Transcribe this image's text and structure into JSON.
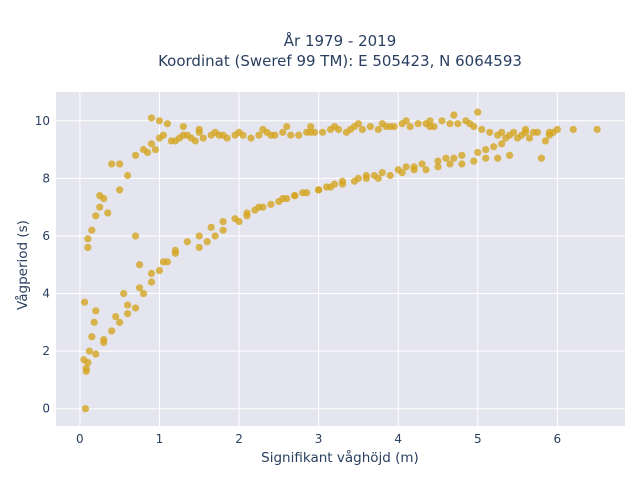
{
  "chart_data": {
    "type": "scatter",
    "title_line1": "År 1979 - 2019",
    "title_line2": "Koordinat (Sweref 99 TM): E 505423, N 6064593",
    "xlabel": "Signifikant våghöjd (m)",
    "ylabel": "Vågperiod (s)",
    "xlim": [
      -0.3,
      6.85
    ],
    "ylim": [
      -0.6,
      11.0
    ],
    "xticks": [
      0,
      1,
      2,
      3,
      4,
      5,
      6
    ],
    "yticks": [
      0,
      2,
      4,
      6,
      8,
      10
    ],
    "xtick_labels": [
      "0",
      "1",
      "2",
      "3",
      "4",
      "5",
      "6"
    ],
    "ytick_labels": [
      "0",
      "2",
      "4",
      "6",
      "8",
      "10"
    ],
    "grid": true,
    "background_color": "#e5e5ef",
    "grid_color": "#ffffff",
    "marker_color": "#d4a522",
    "series": [
      {
        "x": [
          0.08,
          0.1,
          0.12,
          0.15,
          0.18,
          0.2,
          0.1,
          0.15,
          0.2,
          0.25,
          0.3,
          0.2,
          0.3,
          0.4,
          0.5,
          0.6,
          0.7,
          0.6,
          0.5,
          0.7,
          0.8,
          0.9,
          1.0,
          0.8,
          0.9,
          1.0,
          1.1,
          1.2,
          1.2,
          1.3,
          1.4,
          1.5,
          1.5,
          1.6,
          1.7,
          1.8,
          1.8,
          2.0,
          2.1,
          2.2,
          2.3,
          2.4,
          2.5,
          2.6,
          2.7,
          2.8,
          2.9,
          3.0,
          3.1,
          3.2,
          3.3,
          3.4,
          3.5,
          3.6,
          3.7,
          3.8,
          3.9,
          4.0,
          4.1,
          4.2,
          4.3,
          4.4,
          4.5,
          4.6,
          4.7,
          4.8,
          4.9,
          5.0,
          5.1,
          5.2,
          5.3,
          5.4,
          5.5,
          5.6,
          5.7,
          5.8,
          5.9,
          6.0,
          6.2,
          6.5,
          0.05,
          0.08,
          0.06,
          0.1,
          0.4,
          0.35,
          0.5,
          0.55,
          0.3,
          0.25,
          0.7,
          0.75,
          0.85,
          0.95,
          1.05,
          1.15,
          1.25,
          1.35,
          1.45,
          1.55,
          1.65,
          1.75,
          1.85,
          1.95,
          2.05,
          2.15,
          2.25,
          2.35,
          2.45,
          2.55,
          2.65,
          2.75,
          2.85,
          2.95,
          3.05,
          3.15,
          3.25,
          3.35,
          3.45,
          3.55,
          3.65,
          3.75,
          3.85,
          3.95,
          4.05,
          4.15,
          4.25,
          4.35,
          4.45,
          4.55,
          4.65,
          4.75,
          4.85,
          4.95,
          5.05,
          5.15,
          5.25,
          5.35,
          5.45,
          5.55,
          5.65,
          5.75,
          5.85,
          5.95,
          0.45,
          0.6,
          0.75,
          0.9,
          1.05,
          1.2,
          1.35,
          1.5,
          1.65,
          1.8,
          1.95,
          2.1,
          2.25,
          2.4,
          2.55,
          2.7,
          2.85,
          3.0,
          3.15,
          3.3,
          3.45,
          3.6,
          3.75,
          3.9,
          4.05,
          4.2,
          4.35,
          4.5,
          4.65,
          4.8,
          4.95,
          5.1,
          5.25,
          5.4,
          0.9,
          1.0,
          1.1,
          1.3,
          1.5,
          1.7,
          2.0,
          2.3,
          2.6,
          2.9,
          3.2,
          3.5,
          3.8,
          4.1,
          4.4,
          4.7,
          5.0,
          5.3,
          5.6,
          5.9,
          0.07
        ],
        "y": [
          1.3,
          1.6,
          2.0,
          2.5,
          3.0,
          3.4,
          5.6,
          6.2,
          6.7,
          7.0,
          7.3,
          1.9,
          2.4,
          2.7,
          3.0,
          3.3,
          3.5,
          8.1,
          8.5,
          8.8,
          9.0,
          9.2,
          9.4,
          4.0,
          4.4,
          4.8,
          5.1,
          5.4,
          9.3,
          9.5,
          9.4,
          9.6,
          5.6,
          5.8,
          6.0,
          6.2,
          9.5,
          6.5,
          6.7,
          6.9,
          7.0,
          9.5,
          7.2,
          7.3,
          7.4,
          7.5,
          9.6,
          7.6,
          7.7,
          7.8,
          7.9,
          9.7,
          8.0,
          8.1,
          8.1,
          8.2,
          9.8,
          8.3,
          8.4,
          8.4,
          8.5,
          9.8,
          8.6,
          8.7,
          8.7,
          8.8,
          9.9,
          8.9,
          9.0,
          9.1,
          9.2,
          9.5,
          9.4,
          9.6,
          9.6,
          8.7,
          9.5,
          9.7,
          9.7,
          9.7,
          1.7,
          1.4,
          3.7,
          5.9,
          8.5,
          6.8,
          7.6,
          4.0,
          2.3,
          7.4,
          6.0,
          5.0,
          8.9,
          9.0,
          9.5,
          9.3,
          9.4,
          9.5,
          9.3,
          9.4,
          9.5,
          9.5,
          9.4,
          9.5,
          9.5,
          9.4,
          9.5,
          9.6,
          9.5,
          9.6,
          9.5,
          9.5,
          9.6,
          9.6,
          9.6,
          9.7,
          9.7,
          9.6,
          9.8,
          9.7,
          9.8,
          9.7,
          9.8,
          9.8,
          9.9,
          9.8,
          9.9,
          9.9,
          9.8,
          10.0,
          9.9,
          9.9,
          10.0,
          9.8,
          9.7,
          9.6,
          9.5,
          9.4,
          9.6,
          9.5,
          9.4,
          9.6,
          9.3,
          9.6,
          3.2,
          3.6,
          4.2,
          4.7,
          5.1,
          5.5,
          5.8,
          6.0,
          6.3,
          6.5,
          6.6,
          6.8,
          7.0,
          7.1,
          7.3,
          7.4,
          7.5,
          7.6,
          7.7,
          7.8,
          7.9,
          8.0,
          8.0,
          8.1,
          8.2,
          8.3,
          8.3,
          8.4,
          8.5,
          8.5,
          8.6,
          8.7,
          8.7,
          8.8,
          10.1,
          10.0,
          9.9,
          9.8,
          9.7,
          9.6,
          9.6,
          9.7,
          9.8,
          9.8,
          9.8,
          9.9,
          9.9,
          10.0,
          10.0,
          10.2,
          10.3,
          9.6,
          9.7,
          9.6,
          0.0
        ]
      }
    ]
  }
}
